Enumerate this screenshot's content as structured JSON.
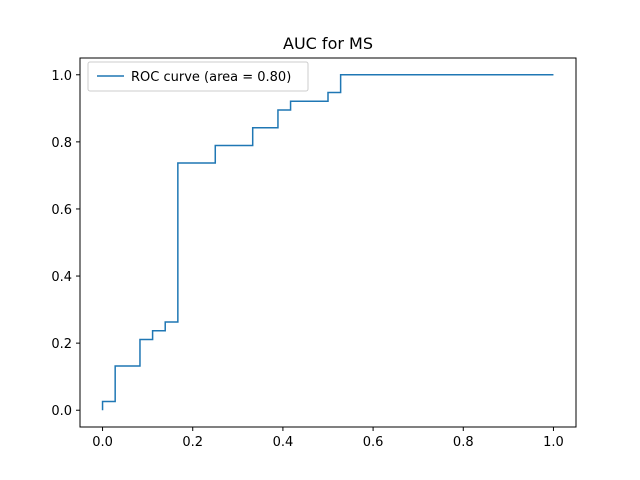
{
  "chart_data": {
    "type": "line",
    "title": "AUC for MS",
    "xlabel": "",
    "ylabel": "",
    "xlim": [
      -0.05,
      1.05
    ],
    "ylim": [
      -0.05,
      1.05
    ],
    "x_ticks": [
      0.0,
      0.2,
      0.4,
      0.6,
      0.8,
      1.0
    ],
    "x_tick_labels": [
      "0.0",
      "0.2",
      "0.4",
      "0.6",
      "0.8",
      "1.0"
    ],
    "y_ticks": [
      0.0,
      0.2,
      0.4,
      0.6,
      0.8,
      1.0
    ],
    "y_tick_labels": [
      "0.0",
      "0.2",
      "0.4",
      "0.6",
      "0.8",
      "1.0"
    ],
    "grid": false,
    "legend": {
      "position": "upper-left",
      "entries": [
        "ROC curve (area = 0.80)"
      ]
    },
    "series": [
      {
        "name": "ROC curve (area = 0.80)",
        "color": "#1f77b4",
        "step": true,
        "x": [
          0.0,
          0.0,
          0.028,
          0.028,
          0.083,
          0.083,
          0.111,
          0.111,
          0.139,
          0.139,
          0.167,
          0.167,
          0.25,
          0.25,
          0.333,
          0.333,
          0.389,
          0.389,
          0.417,
          0.417,
          0.5,
          0.5,
          0.528,
          0.528,
          1.0
        ],
        "y": [
          0.0,
          0.026,
          0.026,
          0.132,
          0.132,
          0.211,
          0.211,
          0.237,
          0.237,
          0.263,
          0.263,
          0.737,
          0.737,
          0.789,
          0.789,
          0.842,
          0.842,
          0.895,
          0.895,
          0.921,
          0.921,
          0.947,
          0.947,
          1.0,
          1.0
        ]
      }
    ]
  }
}
